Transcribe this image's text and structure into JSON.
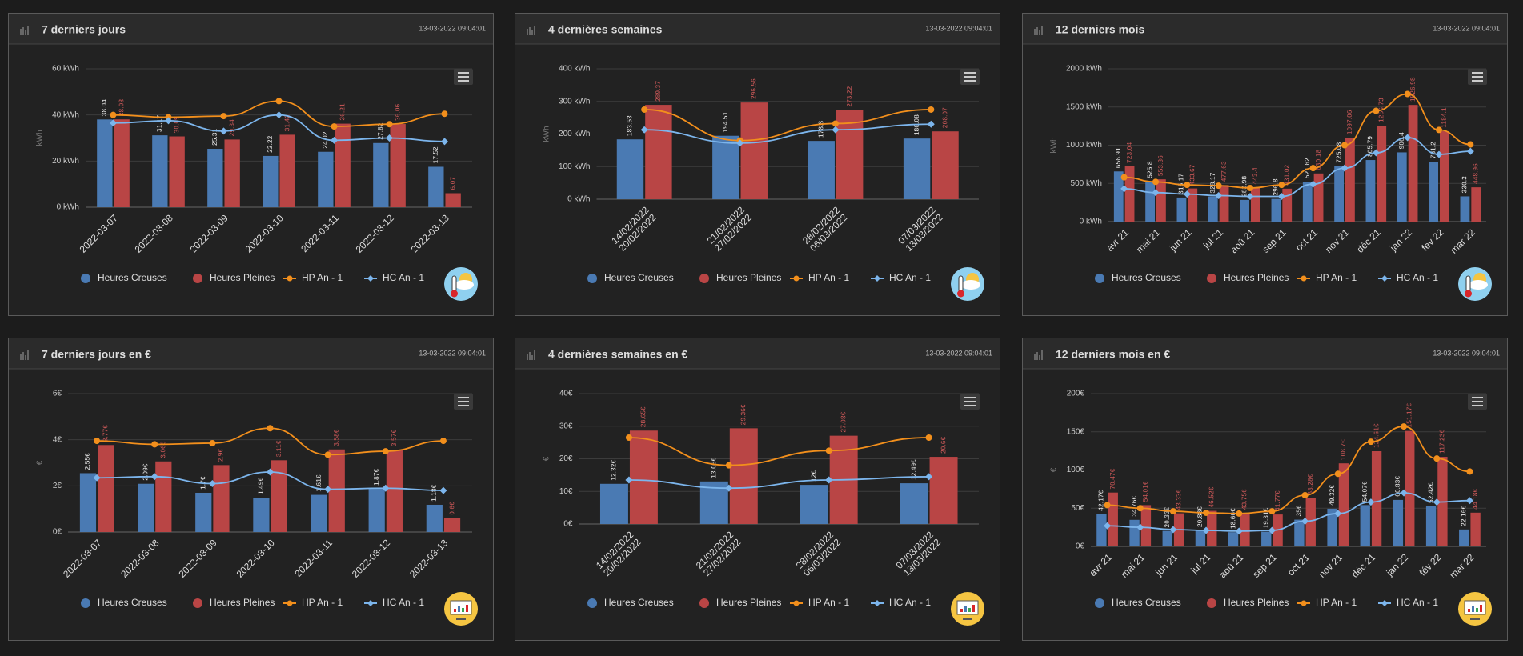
{
  "chart_data": [
    {
      "type": "bar",
      "title": "7 derniers jours",
      "timestamp": "13-03-2022 09:04:01",
      "y_axis_title": "kWh",
      "categories": [
        "2022-03-07",
        "2022-03-08",
        "2022-03-09",
        "2022-03-10",
        "2022-03-11",
        "2022-03-12",
        "2022-03-13"
      ],
      "series": [
        {
          "name": "Heures Creuses",
          "type": "column",
          "color": "#4a7ab3",
          "values": [
            38.04,
            31.17,
            25.31,
            22.22,
            24.02,
            27.82,
            17.52
          ]
        },
        {
          "name": "Heures Pleines",
          "type": "column",
          "color": "#b94545",
          "values": [
            38.08,
            30.69,
            29.34,
            31.42,
            36.21,
            36.06,
            6.07
          ]
        },
        {
          "name": "HP An - 1",
          "type": "line",
          "color": "#f28f1c",
          "values": [
            40,
            39,
            39.5,
            46,
            35,
            36,
            40.5
          ]
        },
        {
          "name": "HC An - 1",
          "type": "line",
          "color": "#7cb5ec",
          "values": [
            36.5,
            37.5,
            33,
            40,
            29,
            30,
            28.5
          ]
        }
      ],
      "ylim": [
        0,
        60
      ],
      "yticks": [
        {
          "value": 0,
          "label": "0 kWh"
        },
        {
          "value": 20,
          "label": "20 kWh"
        },
        {
          "value": 40,
          "label": "40 kWh"
        },
        {
          "value": 60,
          "label": "60 kWh"
        }
      ],
      "grid": true
    },
    {
      "type": "bar",
      "title": "4 dernières semaines",
      "timestamp": "13-03-2022 09:04:01",
      "y_axis_title": "kWh",
      "categories": [
        [
          "14/02/2022",
          "20/02/2022"
        ],
        [
          "21/02/2022",
          "27/02/2022"
        ],
        [
          "28/02/2022",
          "06/03/2022"
        ],
        [
          "07/03/2022",
          "13/03/2022"
        ]
      ],
      "series": [
        {
          "name": "Heures Creuses",
          "type": "column",
          "color": "#4a7ab3",
          "values": [
            183.53,
            194.51,
            178.8,
            186.08
          ]
        },
        {
          "name": "Heures Pleines",
          "type": "column",
          "color": "#b94545",
          "values": [
            289.37,
            296.56,
            273.22,
            208.07
          ]
        },
        {
          "name": "HP An - 1",
          "type": "line",
          "color": "#f28f1c",
          "values": [
            275,
            180,
            232,
            275
          ]
        },
        {
          "name": "HC An - 1",
          "type": "line",
          "color": "#7cb5ec",
          "values": [
            213,
            172,
            213,
            230
          ]
        }
      ],
      "ylim": [
        0,
        400
      ],
      "yticks": [
        {
          "value": 0,
          "label": "0 kWh"
        },
        {
          "value": 100,
          "label": "100 kWh"
        },
        {
          "value": 200,
          "label": "200 kWh"
        },
        {
          "value": 300,
          "label": "300 kWh"
        },
        {
          "value": 400,
          "label": "400 kWh"
        }
      ],
      "grid": true
    },
    {
      "type": "bar",
      "title": "12 derniers mois",
      "timestamp": "13-03-2022 09:04:01",
      "y_axis_title": "kWh",
      "categories": [
        "avr 21",
        "mai 21",
        "jun 21",
        "jul 21",
        "aoû 21",
        "sep 21",
        "oct 21",
        "nov 21",
        "déc 21",
        "jan 22",
        "fév 22",
        "mar 22"
      ],
      "series": [
        {
          "name": "Heures Creuses",
          "type": "column",
          "color": "#4a7ab3",
          "values": [
            656.91,
            525.8,
            315.17,
            328.17,
            283.98,
            296.8,
            521.62,
            725.08,
            805.79,
            906.4,
            781.2,
            330.3
          ]
        },
        {
          "name": "Heures Pleines",
          "type": "column",
          "color": "#b94545",
          "values": [
            723.04,
            553.36,
            433.67,
            477.63,
            443.4,
            431.02,
            630.18,
            1097.06,
            1256.73,
            1526.98,
            1184.1,
            448.96
          ]
        },
        {
          "name": "HP An - 1",
          "type": "line",
          "color": "#f28f1c",
          "values": [
            580,
            520,
            480,
            470,
            440,
            480,
            700,
            1000,
            1450,
            1670,
            1200,
            1010
          ]
        },
        {
          "name": "HC An - 1",
          "type": "line",
          "color": "#7cb5ec",
          "values": [
            430,
            380,
            360,
            340,
            330,
            330,
            490,
            700,
            900,
            1100,
            880,
            920
          ]
        }
      ],
      "ylim": [
        0,
        2000
      ],
      "yticks": [
        {
          "value": 0,
          "label": "0 kWh"
        },
        {
          "value": 500,
          "label": "500 kWh"
        },
        {
          "value": 1000,
          "label": "1000 kWh"
        },
        {
          "value": 1500,
          "label": "1500 kWh"
        },
        {
          "value": 2000,
          "label": "2000 kWh"
        }
      ],
      "grid": true
    },
    {
      "type": "bar",
      "title": "7 derniers jours en €",
      "timestamp": "13-03-2022 09:04:01",
      "y_axis_title": "€",
      "categories": [
        "2022-03-07",
        "2022-03-08",
        "2022-03-09",
        "2022-03-10",
        "2022-03-11",
        "2022-03-12",
        "2022-03-13"
      ],
      "series": [
        {
          "name": "Heures Creuses",
          "type": "column",
          "color": "#4a7ab3",
          "values": [
            2.55,
            2.09,
            1.7,
            1.49,
            1.61,
            1.87,
            1.18
          ],
          "value_labels": [
            "2.55€",
            "2.09€",
            "1.7€",
            "1.49€",
            "1.61€",
            "1.87€",
            "1.18€"
          ]
        },
        {
          "name": "Heures Pleines",
          "type": "column",
          "color": "#b94545",
          "values": [
            3.77,
            3.06,
            2.9,
            3.11,
            3.58,
            3.57,
            0.6
          ],
          "value_labels": [
            "3.77€",
            "3.06€",
            "2.9€",
            "3.11€",
            "3.58€",
            "3.57€",
            "0.6€"
          ]
        },
        {
          "name": "HP An - 1",
          "type": "line",
          "color": "#f28f1c",
          "values": [
            3.95,
            3.8,
            3.85,
            4.5,
            3.35,
            3.5,
            3.95
          ]
        },
        {
          "name": "HC An - 1",
          "type": "line",
          "color": "#7cb5ec",
          "values": [
            2.35,
            2.4,
            2.1,
            2.6,
            1.85,
            1.9,
            1.8
          ]
        }
      ],
      "ylim": [
        0,
        6
      ],
      "yticks": [
        {
          "value": 0,
          "label": "0€"
        },
        {
          "value": 2,
          "label": "2€"
        },
        {
          "value": 4,
          "label": "4€"
        },
        {
          "value": 6,
          "label": "6€"
        }
      ],
      "grid": true
    },
    {
      "type": "bar",
      "title": "4 dernières semaines en €",
      "timestamp": "13-03-2022 09:04:01",
      "y_axis_title": "€",
      "categories": [
        [
          "14/02/2022",
          "20/02/2022"
        ],
        [
          "21/02/2022",
          "27/02/2022"
        ],
        [
          "28/02/2022",
          "06/03/2022"
        ],
        [
          "07/03/2022",
          "13/03/2022"
        ]
      ],
      "series": [
        {
          "name": "Heures Creuses",
          "type": "column",
          "color": "#4a7ab3",
          "values": [
            12.32,
            13.05,
            12,
            12.49
          ],
          "value_labels": [
            "12.32€",
            "13.05€",
            "12€",
            "12.49€"
          ]
        },
        {
          "name": "Heures Pleines",
          "type": "column",
          "color": "#b94545",
          "values": [
            28.65,
            29.36,
            27.08,
            20.6
          ],
          "value_labels": [
            "28.65€",
            "29.36€",
            "27.08€",
            "20.6€"
          ]
        },
        {
          "name": "HP An - 1",
          "type": "line",
          "color": "#f28f1c",
          "values": [
            26.5,
            18,
            22.5,
            26.5
          ]
        },
        {
          "name": "HC An - 1",
          "type": "line",
          "color": "#7cb5ec",
          "values": [
            13.5,
            11,
            13.5,
            14.5
          ]
        }
      ],
      "ylim": [
        0,
        40
      ],
      "yticks": [
        {
          "value": 0,
          "label": "0€"
        },
        {
          "value": 10,
          "label": "10€"
        },
        {
          "value": 20,
          "label": "20€"
        },
        {
          "value": 30,
          "label": "30€"
        },
        {
          "value": 40,
          "label": "40€"
        }
      ],
      "grid": true
    },
    {
      "type": "bar",
      "title": "12 derniers mois en €",
      "timestamp": "13-03-2022 09:04:01",
      "y_axis_title": "€",
      "categories": [
        "avr 21",
        "mai 21",
        "jun 21",
        "jul 21",
        "aoû 21",
        "sep 21",
        "oct 21",
        "nov 21",
        "déc 21",
        "jan 22",
        "fév 22",
        "mar 22"
      ],
      "series": [
        {
          "name": "Heures Creuses",
          "type": "column",
          "color": "#4a7ab3",
          "values": [
            42.17,
            34.76,
            20.33,
            20.88,
            18.66,
            19.31,
            35,
            49.32,
            54.07,
            60.83,
            52.42,
            22.16
          ],
          "value_labels": [
            "42.17€",
            "34.76€",
            "20.33€",
            "20.88€",
            "18.66€",
            "19.31€",
            "35€",
            "49.32€",
            "54.07€",
            "60.83€",
            "52.42€",
            "22.16€"
          ]
        },
        {
          "name": "Heures Pleines",
          "type": "column",
          "color": "#b94545",
          "values": [
            70.47,
            54.01,
            43.33,
            46.52,
            43.75,
            41.77,
            63.28,
            108.7,
            124.61,
            151.17,
            117.23,
            44.18
          ],
          "value_labels": [
            "70.47€",
            "54.01€",
            "43.33€",
            "46.52€",
            "43.75€",
            "41.77€",
            "63.28€",
            "108.7€",
            "124.61€",
            "151.17€",
            "117.23€",
            "44.18€"
          ]
        },
        {
          "name": "HP An - 1",
          "type": "line",
          "color": "#f28f1c",
          "values": [
            54,
            50,
            46,
            44,
            43,
            46,
            67,
            95,
            137,
            157,
            115,
            98
          ]
        },
        {
          "name": "HC An - 1",
          "type": "line",
          "color": "#7cb5ec",
          "values": [
            27,
            25,
            22,
            21,
            20,
            21,
            33,
            43,
            58,
            70,
            58,
            60
          ]
        }
      ],
      "ylim": [
        0,
        200
      ],
      "yticks": [
        {
          "value": 0,
          "label": "0€"
        },
        {
          "value": 50,
          "label": "50€"
        },
        {
          "value": 100,
          "label": "100€"
        },
        {
          "value": 150,
          "label": "150€"
        },
        {
          "value": 200,
          "label": "200€"
        }
      ],
      "grid": true
    }
  ]
}
